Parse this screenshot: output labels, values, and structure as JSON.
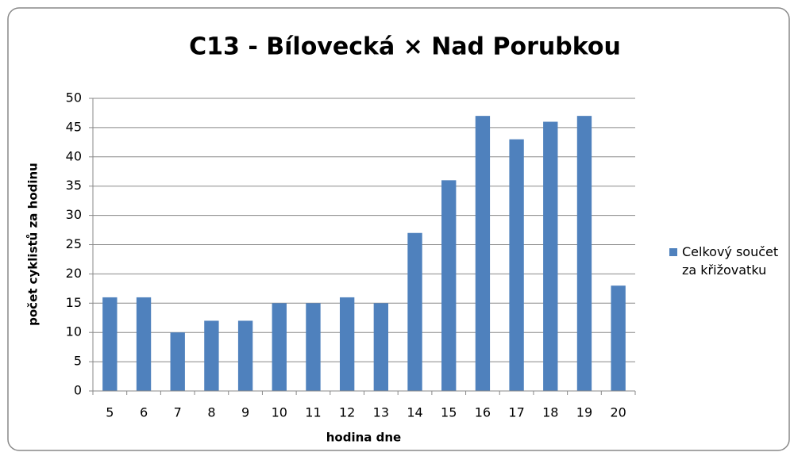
{
  "chart_data": {
    "type": "bar",
    "title": "C13 - Bílovecká × Nad Porubkou",
    "x_label": "hodina dne",
    "y_label": "počet cyklistů za hodinu",
    "categories": [
      "5",
      "6",
      "7",
      "8",
      "9",
      "10",
      "11",
      "12",
      "13",
      "14",
      "15",
      "16",
      "17",
      "18",
      "19",
      "20"
    ],
    "series": [
      {
        "name": "Celkový součet za křižovatku",
        "color": "#4f81bd",
        "values": [
          16,
          16,
          10,
          12,
          12,
          15,
          15,
          16,
          15,
          27,
          36,
          47,
          43,
          46,
          47,
          18
        ]
      }
    ],
    "ylim": [
      0,
      50
    ],
    "yticks": [
      0,
      5,
      10,
      15,
      20,
      25,
      30,
      35,
      40,
      45,
      50
    ],
    "grid": true,
    "legend": "right"
  }
}
